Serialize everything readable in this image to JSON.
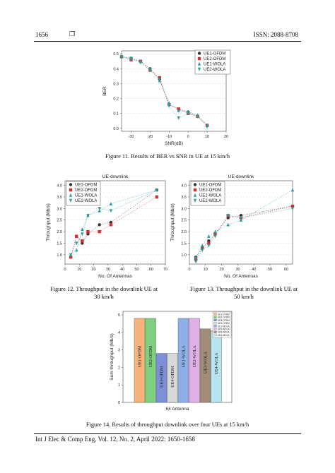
{
  "header": {
    "page_number": "1656",
    "box_glyph": "❒",
    "issn": "ISSN: 2088-8708"
  },
  "footer": {
    "text": "Int J Elec & Comp Eng, Vol. 12, No. 2, April 2022: 1650-1658"
  },
  "colors": {
    "s1": "#333333",
    "s2": "#d33030",
    "s3": "#2a9ab0",
    "s4": "#2f9e90"
  },
  "figure11": {
    "caption": "Figure 11. Results of BER vs SNR in UE at 15 km/h",
    "chart_data": {
      "type": "line",
      "title": "",
      "xlabel": "SNR(dB)",
      "ylabel": "BER",
      "xlim": [
        -35,
        20
      ],
      "ylim": [
        -0.02,
        0.52
      ],
      "xticks": [
        "-30",
        "-20",
        "-10",
        "0",
        "10",
        "20"
      ],
      "yticks": [
        "0.0",
        "0.1",
        "0.2",
        "0.3",
        "0.4",
        "0.5"
      ],
      "legend": "top-right",
      "x": [
        -35,
        -30,
        -25,
        -20,
        -15,
        -10,
        -5,
        0,
        5,
        10
      ],
      "series": [
        {
          "name": "UE1-OFDM",
          "values": [
            0.48,
            0.47,
            0.45,
            0.4,
            0.33,
            0.16,
            0.13,
            0.11,
            0.08,
            0.02
          ]
        },
        {
          "name": "UE2-OFDM",
          "values": [
            0.48,
            0.46,
            0.45,
            0.39,
            0.34,
            0.16,
            0.13,
            0.1,
            0.08,
            0.02
          ]
        },
        {
          "name": "UE1-WOLA",
          "values": [
            0.48,
            0.47,
            0.45,
            0.4,
            0.32,
            0.17,
            0.12,
            0.11,
            0.09,
            0.02
          ]
        },
        {
          "name": "UE2-WOLA",
          "values": [
            0.48,
            0.47,
            0.44,
            0.39,
            0.33,
            0.15,
            0.07,
            0.1,
            0.08,
            0.01
          ]
        }
      ]
    }
  },
  "figure12": {
    "caption_lines": [
      "Figure 12. Throughput in the downlink UE at",
      "30 km/h"
    ],
    "chart_data": {
      "type": "line",
      "title": "UE-downlink",
      "xlabel": "No. Of Antennas",
      "ylabel": "Throughput (Mb/s)",
      "xlim": [
        0,
        70
      ],
      "ylim": [
        0.6,
        4.2
      ],
      "xticks": [
        "0",
        "10",
        "20",
        "30",
        "40",
        "50",
        "60",
        "70"
      ],
      "yticks": [
        "1.0",
        "1.5",
        "2.0",
        "2.5",
        "3.0",
        "3.5",
        "4.0"
      ],
      "legend": "top-left",
      "x": [
        4,
        8,
        12,
        16,
        24,
        32,
        64
      ],
      "series": [
        {
          "name": "UE1-OFDM",
          "values": [
            0.9,
            1.8,
            1.5,
            1.9,
            2.3,
            2.4,
            3.8
          ]
        },
        {
          "name": "UE2-OFDM",
          "values": [
            0.9,
            1.8,
            1.6,
            2.0,
            2.0,
            2.3,
            3.5
          ]
        },
        {
          "name": "UE1-WOLA",
          "values": [
            1.0,
            1.2,
            2.1,
            2.7,
            2.9,
            3.2,
            3.8
          ]
        },
        {
          "name": "UE2-WOLA",
          "values": [
            1.0,
            1.5,
            1.9,
            2.7,
            3.0,
            2.9,
            3.8
          ]
        }
      ]
    }
  },
  "figure13": {
    "caption_lines": [
      "Figure 13. Throughput in the downlink UE at",
      "50 km/h"
    ],
    "chart_data": {
      "type": "line",
      "title": "UE-downlink",
      "xlabel": "No. Of Antennas",
      "ylabel": "Throughput (Mb/s)",
      "xlim": [
        0,
        64
      ],
      "ylim": [
        0.6,
        4.2
      ],
      "xticks": [
        "0",
        "10",
        "20",
        "30",
        "40",
        "50",
        "60"
      ],
      "yticks": [
        "1.0",
        "1.5",
        "2.0",
        "2.5",
        "3.0",
        "3.5",
        "4.0"
      ],
      "legend": "top-left",
      "x": [
        4,
        8,
        12,
        16,
        24,
        32,
        64
      ],
      "series": [
        {
          "name": "UE1-OFDM",
          "values": [
            0.9,
            1.3,
            1.6,
            1.9,
            2.6,
            2.7,
            3.1
          ]
        },
        {
          "name": "UE2-OFDM",
          "values": [
            0.8,
            1.3,
            1.5,
            1.9,
            2.7,
            2.6,
            3.1
          ]
        },
        {
          "name": "UE1-WOLA",
          "values": [
            0.9,
            1.4,
            1.8,
            2.0,
            2.3,
            2.5,
            3.8
          ]
        },
        {
          "name": "UE2-WOLA",
          "values": [
            0.7,
            1.2,
            1.4,
            1.8,
            2.7,
            2.6,
            3.0
          ]
        }
      ]
    }
  },
  "figure14": {
    "caption": "Figure 14. Results of throughput downlink over four UEs at 15 km/h",
    "chart_data": {
      "type": "bar",
      "title": "",
      "xlabel": "64 Antenna",
      "ylabel": "Sum throughput (Mb/s)",
      "ylim": [
        0,
        5.2
      ],
      "yticks": [
        "0",
        "1",
        "2",
        "3",
        "4",
        "5"
      ],
      "legend": "top-right",
      "categories": [
        "UE1-OFDM",
        "UE2-OFDM",
        "UE3-OFDM",
        "UE4-OFDM",
        "UE1-WOLA",
        "UE2-WOLA",
        "UE3-WOLA",
        "UE4-WOLA"
      ],
      "values": [
        4.8,
        4.8,
        2.8,
        2.8,
        4.8,
        4.8,
        4.2,
        4.1
      ],
      "bar_colors": [
        "#f5b27a",
        "#7ecf7e",
        "#7d8fd8",
        "#d8d8d8",
        "#8fb0e6",
        "#e0b0e6",
        "#a08c78",
        "#b8e4ef"
      ]
    }
  }
}
